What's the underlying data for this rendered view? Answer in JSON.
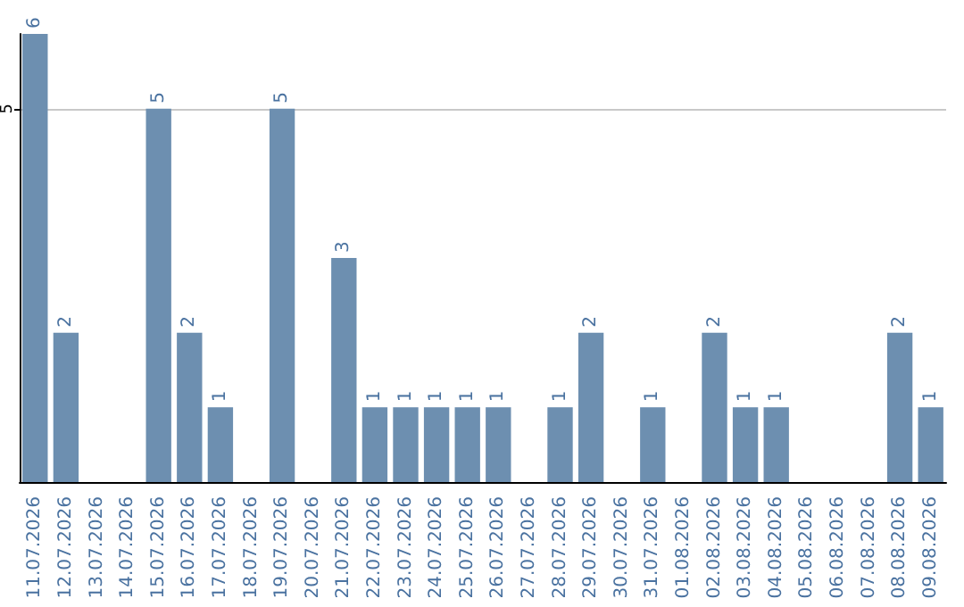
{
  "chart_data": {
    "type": "bar",
    "categories": [
      "11.07.2026",
      "12.07.2026",
      "13.07.2026",
      "14.07.2026",
      "15.07.2026",
      "16.07.2026",
      "17.07.2026",
      "18.07.2026",
      "19.07.2026",
      "20.07.2026",
      "21.07.2026",
      "22.07.2026",
      "23.07.2026",
      "24.07.2026",
      "25.07.2026",
      "26.07.2026",
      "27.07.2026",
      "28.07.2026",
      "29.07.2026",
      "30.07.2026",
      "31.07.2026",
      "01.08.2026",
      "02.08.2026",
      "03.08.2026",
      "04.08.2026",
      "05.08.2026",
      "06.08.2026",
      "07.08.2026",
      "08.08.2026",
      "09.08.2026"
    ],
    "values": [
      6,
      2,
      0,
      0,
      5,
      2,
      1,
      0,
      5,
      0,
      3,
      1,
      1,
      1,
      1,
      1,
      0,
      1,
      2,
      0,
      1,
      0,
      2,
      1,
      1,
      0,
      0,
      0,
      2,
      1
    ],
    "value_labels": [
      "6",
      "2",
      null,
      null,
      "5",
      "2",
      "1",
      null,
      "5",
      null,
      "3",
      "1",
      "1",
      "1",
      "1",
      "1",
      null,
      "1",
      "2",
      null,
      "1",
      null,
      "2",
      "1",
      "1",
      null,
      null,
      null,
      "2",
      "1"
    ],
    "color": "#6d8fb0",
    "ylim": [
      0,
      6
    ],
    "yticks": [
      5
    ],
    "grid": "y"
  }
}
